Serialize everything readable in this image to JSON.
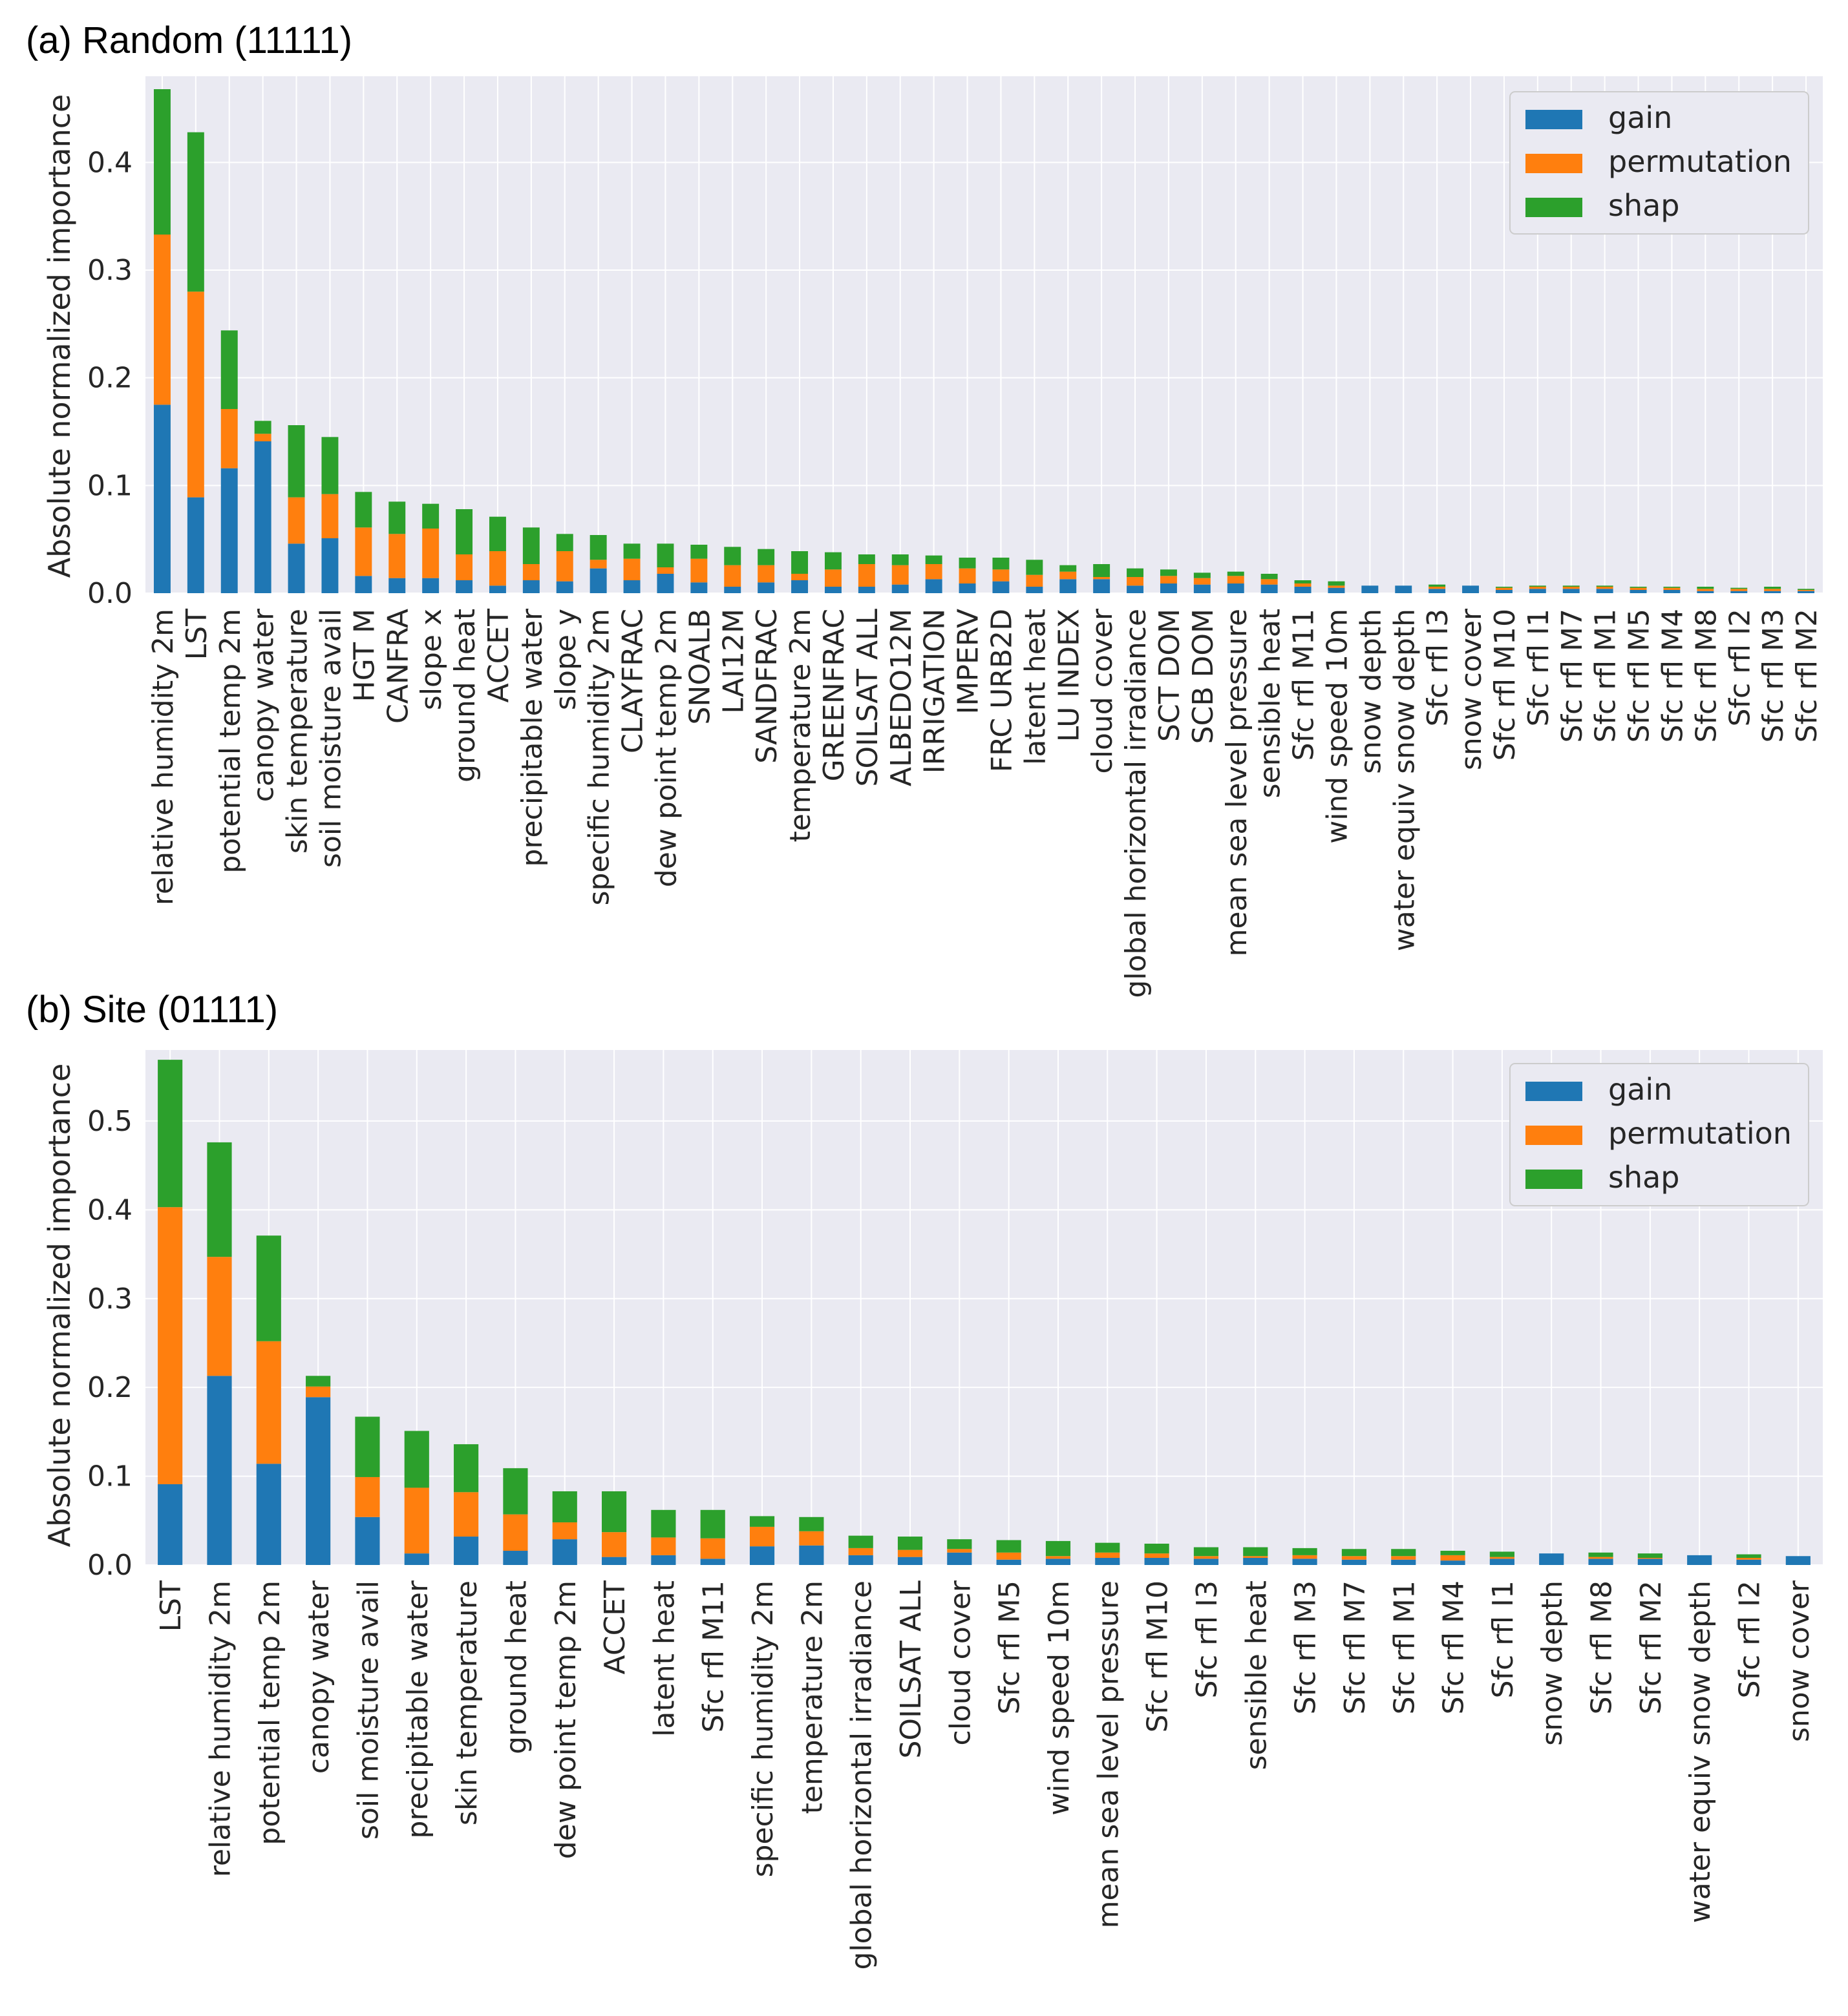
{
  "colors": {
    "gain": "#1f77b4",
    "permutation": "#ff7f0e",
    "shap": "#2ca02c",
    "plot_bg": "#eaeaf2",
    "grid": "#ffffff"
  },
  "chart_data": [
    {
      "type": "bar",
      "stacked": true,
      "title": "(a) Random (11111)",
      "ylabel": "Absolute normalized importance",
      "xlabel": "",
      "ylim": [
        0,
        0.48
      ],
      "yticks": [
        "0.0",
        "0.1",
        "0.2",
        "0.3",
        "0.4"
      ],
      "grid": true,
      "legend": {
        "position": "top-right",
        "entries": [
          "gain",
          "permutation",
          "shap"
        ]
      },
      "categories": [
        "relative humidity 2m",
        "LST",
        "potential temp 2m",
        "canopy water",
        "skin temperature",
        "soil moisture avail",
        "HGT M",
        "CANFRA",
        "slope x",
        "ground heat",
        "ACCET",
        "precipitable water",
        "slope y",
        "specific humidity 2m",
        "CLAYFRAC",
        "dew point temp 2m",
        "SNOALB",
        "LAI12M",
        "SANDFRAC",
        "temperature 2m",
        "GREENFRAC",
        "SOILSAT ALL",
        "ALBEDO12M",
        "IRRIGATION",
        "IMPERV",
        "FRC URB2D",
        "latent heat",
        "LU INDEX",
        "cloud cover",
        "global horizontal irradiance",
        "SCT DOM",
        "SCB DOM",
        "mean sea level pressure",
        "sensible heat",
        "Sfc rfl M11",
        "wind speed 10m",
        "snow depth",
        "water equiv snow depth",
        "Sfc rfl I3",
        "snow cover",
        "Sfc rfl M10",
        "Sfc rfl I1",
        "Sfc rfl M7",
        "Sfc rfl M1",
        "Sfc rfl M5",
        "Sfc rfl M4",
        "Sfc rfl M8",
        "Sfc rfl I2",
        "Sfc rfl M3",
        "Sfc rfl M2"
      ],
      "series": [
        {
          "name": "gain",
          "values": [
            0.175,
            0.089,
            0.116,
            0.141,
            0.046,
            0.051,
            0.016,
            0.014,
            0.014,
            0.012,
            0.007,
            0.012,
            0.011,
            0.023,
            0.012,
            0.018,
            0.01,
            0.006,
            0.01,
            0.012,
            0.006,
            0.006,
            0.008,
            0.013,
            0.009,
            0.011,
            0.006,
            0.013,
            0.013,
            0.007,
            0.009,
            0.008,
            0.009,
            0.008,
            0.006,
            0.005,
            0.007,
            0.007,
            0.004,
            0.007,
            0.003,
            0.004,
            0.004,
            0.004,
            0.003,
            0.003,
            0.002,
            0.002,
            0.002,
            0.002
          ]
        },
        {
          "name": "permutation",
          "values": [
            0.158,
            0.191,
            0.055,
            0.007,
            0.043,
            0.041,
            0.045,
            0.041,
            0.046,
            0.024,
            0.032,
            0.015,
            0.028,
            0.008,
            0.02,
            0.006,
            0.022,
            0.02,
            0.016,
            0.006,
            0.016,
            0.021,
            0.018,
            0.014,
            0.014,
            0.011,
            0.011,
            0.007,
            0.002,
            0.008,
            0.007,
            0.006,
            0.007,
            0.005,
            0.003,
            0.002,
            0.0,
            0.0,
            0.002,
            0.0,
            0.002,
            0.002,
            0.002,
            0.002,
            0.002,
            0.002,
            0.002,
            0.002,
            0.002,
            0.001
          ]
        },
        {
          "name": "shap",
          "values": [
            0.135,
            0.148,
            0.073,
            0.012,
            0.067,
            0.053,
            0.033,
            0.03,
            0.023,
            0.042,
            0.032,
            0.034,
            0.016,
            0.023,
            0.014,
            0.022,
            0.013,
            0.017,
            0.015,
            0.021,
            0.016,
            0.009,
            0.01,
            0.008,
            0.01,
            0.011,
            0.014,
            0.006,
            0.012,
            0.008,
            0.006,
            0.005,
            0.004,
            0.005,
            0.003,
            0.004,
            0.0,
            0.0,
            0.002,
            0.0,
            0.001,
            0.001,
            0.001,
            0.001,
            0.001,
            0.001,
            0.002,
            0.001,
            0.002,
            0.001
          ]
        }
      ]
    },
    {
      "type": "bar",
      "stacked": true,
      "title": "(b) Site (01111)",
      "ylabel": "Absolute normalized importance",
      "xlabel": "",
      "ylim": [
        0,
        0.58
      ],
      "yticks": [
        "0.0",
        "0.1",
        "0.2",
        "0.3",
        "0.4",
        "0.5"
      ],
      "grid": true,
      "legend": {
        "position": "top-right",
        "entries": [
          "gain",
          "permutation",
          "shap"
        ]
      },
      "categories": [
        "LST",
        "relative humidity 2m",
        "potential temp 2m",
        "canopy water",
        "soil moisture avail",
        "precipitable water",
        "skin temperature",
        "ground heat",
        "dew point temp 2m",
        "ACCET",
        "latent heat",
        "Sfc rfl M11",
        "specific humidity 2m",
        "temperature 2m",
        "global horizontal irradiance",
        "SOILSAT ALL",
        "cloud cover",
        "Sfc rfl M5",
        "wind speed 10m",
        "mean sea level pressure",
        "Sfc rfl M10",
        "Sfc rfl I3",
        "sensible heat",
        "Sfc rfl M3",
        "Sfc rfl M7",
        "Sfc rfl M1",
        "Sfc rfl M4",
        "Sfc rfl I1",
        "snow depth",
        "Sfc rfl M8",
        "Sfc rfl M2",
        "water equiv snow depth",
        "Sfc rfl I2",
        "snow cover"
      ],
      "series": [
        {
          "name": "gain",
          "values": [
            0.091,
            0.213,
            0.114,
            0.189,
            0.054,
            0.013,
            0.032,
            0.016,
            0.029,
            0.009,
            0.011,
            0.007,
            0.021,
            0.022,
            0.011,
            0.009,
            0.014,
            0.006,
            0.007,
            0.008,
            0.008,
            0.007,
            0.008,
            0.007,
            0.006,
            0.006,
            0.005,
            0.007,
            0.013,
            0.007,
            0.007,
            0.011,
            0.006,
            0.01
          ]
        },
        {
          "name": "permutation",
          "values": [
            0.312,
            0.134,
            0.138,
            0.012,
            0.045,
            0.074,
            0.05,
            0.041,
            0.019,
            0.028,
            0.02,
            0.023,
            0.022,
            0.016,
            0.008,
            0.008,
            0.004,
            0.008,
            0.003,
            0.006,
            0.005,
            0.003,
            0.002,
            0.004,
            0.004,
            0.004,
            0.006,
            0.002,
            0.0,
            0.002,
            0.001,
            0.0,
            0.002,
            0.0
          ]
        },
        {
          "name": "shap",
          "values": [
            0.166,
            0.129,
            0.119,
            0.012,
            0.068,
            0.064,
            0.054,
            0.052,
            0.035,
            0.046,
            0.031,
            0.032,
            0.012,
            0.016,
            0.014,
            0.015,
            0.011,
            0.014,
            0.017,
            0.011,
            0.011,
            0.01,
            0.01,
            0.008,
            0.008,
            0.008,
            0.005,
            0.006,
            0.0,
            0.005,
            0.005,
            0.0,
            0.004,
            0.0
          ]
        }
      ]
    }
  ]
}
